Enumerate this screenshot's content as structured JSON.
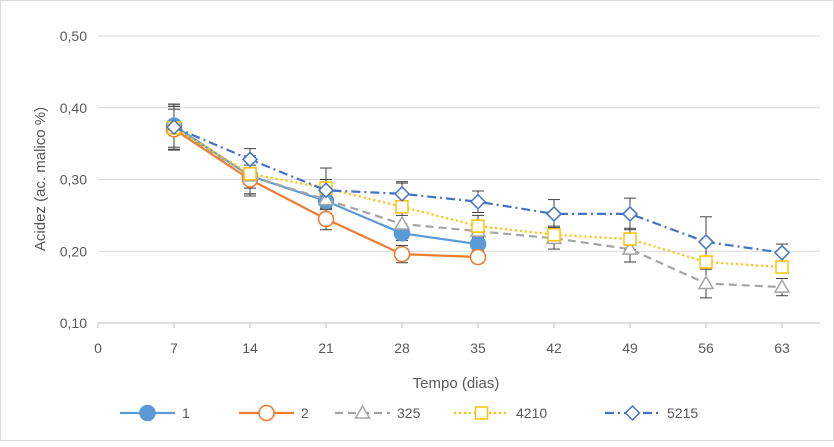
{
  "chart_data": {
    "type": "line",
    "title": "",
    "xlabel": "Tempo (dias)",
    "ylabel": "Acidez (ac. malico %)",
    "xlim": [
      0,
      66.5
    ],
    "ylim": [
      0.1,
      0.5
    ],
    "x_ticks": [
      "0",
      "7",
      "14",
      "21",
      "28",
      "35",
      "42",
      "49",
      "56",
      "63"
    ],
    "y_ticks": [
      "0,10",
      "0,20",
      "0,30",
      "0,40",
      "0,50"
    ],
    "grid": true,
    "legend_position": "bottom",
    "series": [
      {
        "name": "1",
        "color": "#5b9bd5",
        "line_style": "solid",
        "marker": "filled-circle",
        "x": [
          7,
          14,
          21,
          28,
          35
        ],
        "values": [
          0.375,
          0.305,
          0.27,
          0.225,
          0.21
        ],
        "error": [
          0.03,
          0.028,
          0.012,
          0.01,
          0.01
        ]
      },
      {
        "name": "2",
        "color": "#ed7d31",
        "line_style": "solid",
        "marker": "open-circle",
        "x": [
          7,
          14,
          21,
          28,
          35
        ],
        "values": [
          0.37,
          0.3,
          0.245,
          0.196,
          0.192
        ],
        "error": [
          0.028,
          0.02,
          0.015,
          0.012,
          0.008
        ]
      },
      {
        "name": "325",
        "color": "#a5a5a5",
        "line_style": "dashed",
        "marker": "open-triangle",
        "x": [
          7,
          14,
          21,
          28,
          35,
          42,
          49,
          56,
          63
        ],
        "values": [
          0.372,
          0.305,
          0.272,
          0.238,
          0.228,
          0.218,
          0.203,
          0.155,
          0.15
        ],
        "error": [
          0.03,
          0.025,
          0.012,
          0.012,
          0.01,
          0.015,
          0.018,
          0.02,
          0.012
        ]
      },
      {
        "name": "4210",
        "color": "#ffc000",
        "line_style": "dotted",
        "marker": "open-square",
        "x": [
          7,
          14,
          21,
          28,
          35,
          42,
          49,
          56,
          63
        ],
        "values": [
          0.372,
          0.308,
          0.288,
          0.262,
          0.235,
          0.223,
          0.217,
          0.185,
          0.178
        ],
        "error": [
          0.03,
          0.02,
          0.028,
          0.035,
          0.015,
          0.012,
          0.015,
          0.008,
          0.008
        ]
      },
      {
        "name": "5215",
        "color": "#4472c4",
        "line_style": "dash-dot",
        "marker": "open-diamond",
        "x": [
          7,
          14,
          21,
          28,
          35,
          42,
          49,
          56,
          63
        ],
        "values": [
          0.373,
          0.328,
          0.285,
          0.28,
          0.269,
          0.252,
          0.252,
          0.213,
          0.198
        ],
        "error": [
          0.032,
          0.015,
          0.015,
          0.015,
          0.015,
          0.02,
          0.022,
          0.035,
          0.012
        ]
      }
    ]
  }
}
